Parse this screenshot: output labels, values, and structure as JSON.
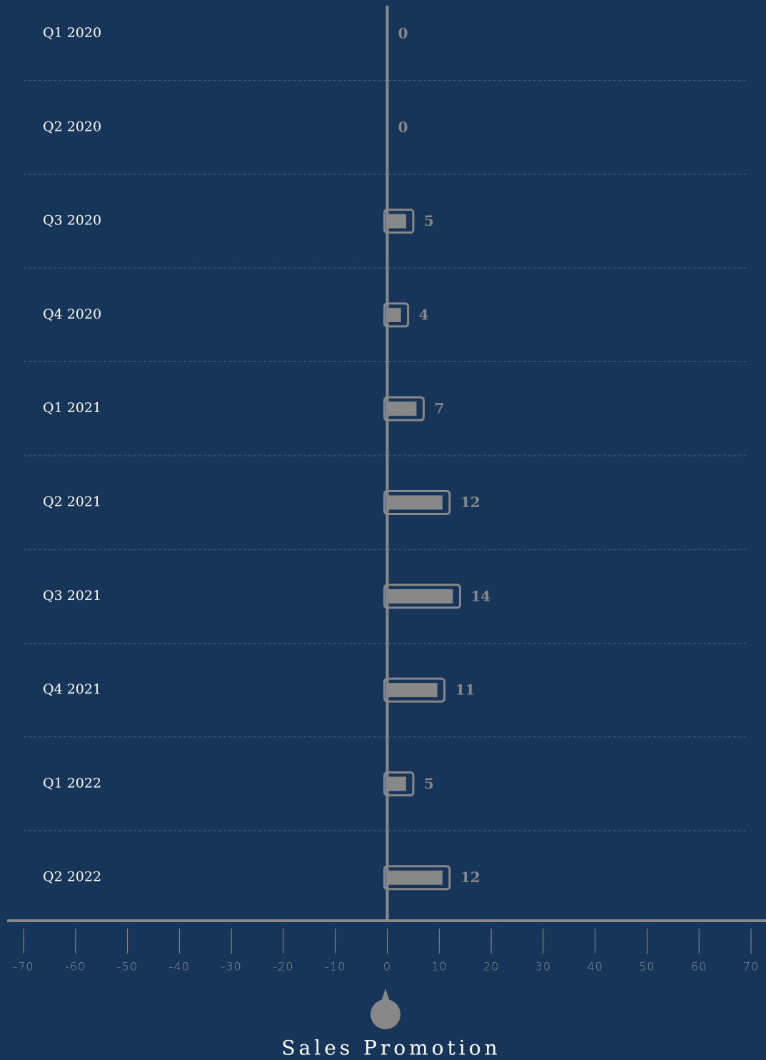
{
  "chart_data": {
    "type": "bar",
    "orientation": "horizontal",
    "x_label": "Sales Promotion",
    "categories": [
      "Q1 2020",
      "Q2 2020",
      "Q3 2020",
      "Q4 2020",
      "Q1 2021",
      "Q2 2021",
      "Q3 2021",
      "Q4 2021",
      "Q1 2022",
      "Q2 2022"
    ],
    "values": [
      0,
      0,
      5,
      4,
      7,
      12,
      14,
      11,
      5,
      12
    ],
    "color": "#888888",
    "xlim": [
      -70,
      70
    ],
    "xticks": [
      -70,
      -60,
      -50,
      -40,
      -30,
      -20,
      -10,
      0,
      10,
      20,
      30,
      40,
      50,
      60,
      70
    ],
    "grid": true
  }
}
